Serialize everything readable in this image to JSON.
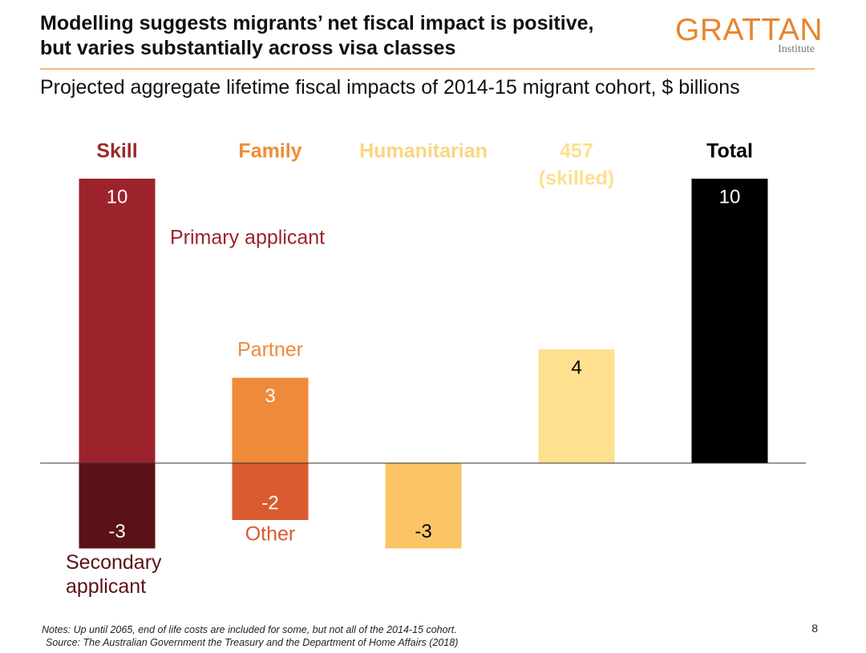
{
  "header": {
    "title_line1": "Modelling suggests migrants’ net fiscal impact is positive,",
    "title_line2": "but varies substantially across visa classes",
    "subtitle": "Projected aggregate lifetime fiscal impacts of 2014-15 migrant cohort, $ billions"
  },
  "logo": {
    "main": "GRATTAN",
    "sub": "Institute",
    "color": "#e8852f"
  },
  "chart_data": {
    "type": "bar",
    "stacked": true,
    "title": "Projected aggregate lifetime fiscal impacts of 2014-15 migrant cohort, $ billions",
    "unit": "$ billions",
    "categories": [
      {
        "label": "Skill",
        "color": "#9c2a2a"
      },
      {
        "label": "Family",
        "color": "#ef8c35"
      },
      {
        "label": "Humanitarian",
        "color": "#fcd57f"
      },
      {
        "label": "457 (skilled)",
        "color": "#fde08e"
      },
      {
        "label": "Total",
        "color": "#000000"
      }
    ],
    "segments": [
      {
        "category": "Skill",
        "name": "Primary applicant",
        "value": 10,
        "color": "#9c232b",
        "value_text_color": "#ffffff",
        "name_color": "#9c232b"
      },
      {
        "category": "Skill",
        "name": "Secondary applicant",
        "value": -3,
        "color": "#5a1217",
        "value_text_color": "#ffffff",
        "name_color": "#5a1217"
      },
      {
        "category": "Family",
        "name": "Partner",
        "value": 3,
        "color": "#ef8a3a",
        "value_text_color": "#ffffff",
        "name_color": "#ef8a3a"
      },
      {
        "category": "Family",
        "name": "Other",
        "value": -2,
        "color": "#d95b2f",
        "value_text_color": "#ffffff",
        "name_color": "#d95b2f"
      },
      {
        "category": "Humanitarian",
        "name": "",
        "value": -3,
        "color": "#fbc466",
        "value_text_color": "#000000",
        "name_color": "#fbc466"
      },
      {
        "category": "457 (skilled)",
        "name": "",
        "value": 4,
        "color": "#fee08f",
        "value_text_color": "#000000",
        "name_color": "#fee08f"
      },
      {
        "category": "Total",
        "name": "",
        "value": 10,
        "color": "#000000",
        "value_text_color": "#ffffff",
        "name_color": "#000000"
      }
    ],
    "ylim": [
      -3,
      10
    ],
    "baseline": 0,
    "xlabel": "",
    "ylabel": "",
    "grid": false,
    "legend": "none"
  },
  "footer": {
    "notes": "Notes: Up until 2065, end of life costs are included for some, but not all of the 2014-15 cohort.",
    "source": "Source: The Australian Government the Treasury and the Department of Home Affairs (2018)",
    "page_number": "8"
  }
}
